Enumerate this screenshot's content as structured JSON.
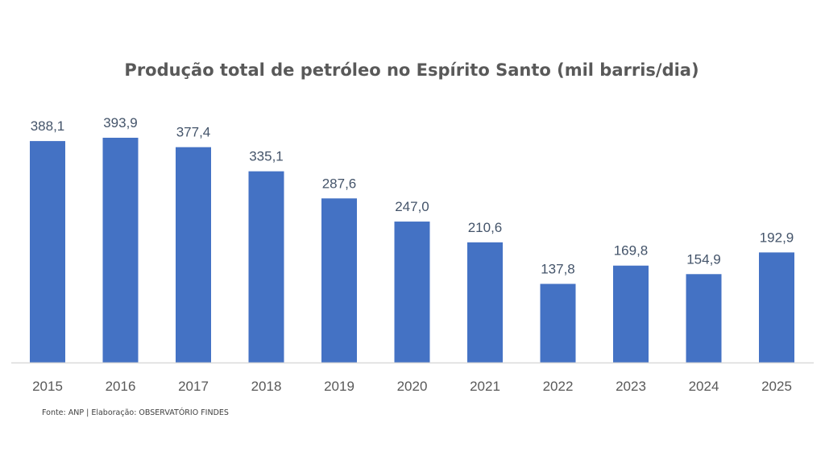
{
  "chart_data": {
    "type": "bar",
    "title": "Produção total de petróleo no Espírito Santo (mil barris/dia)",
    "categories": [
      "2015",
      "2016",
      "2017",
      "2018",
      "2019",
      "2020",
      "2021",
      "2022",
      "2023",
      "2024",
      "2025"
    ],
    "values": [
      388.1,
      393.9,
      377.4,
      335.1,
      287.6,
      247.0,
      210.6,
      137.8,
      169.8,
      154.9,
      192.9
    ],
    "data_labels": [
      "388,1",
      "393,9",
      "377,4",
      "335,1",
      "287,6",
      "247,0",
      "210,6",
      "137,8",
      "169,8",
      "154,9",
      "192,9"
    ],
    "xlabel": "",
    "ylabel": "",
    "ylim": [
      0,
      393.9
    ],
    "grid": false,
    "legend": "none",
    "bar_color": "#4472c4",
    "axis_color": "#d9d9d9"
  },
  "source": "Fonte: ANP | Elaboração: OBSERVATÓRIO FINDES"
}
